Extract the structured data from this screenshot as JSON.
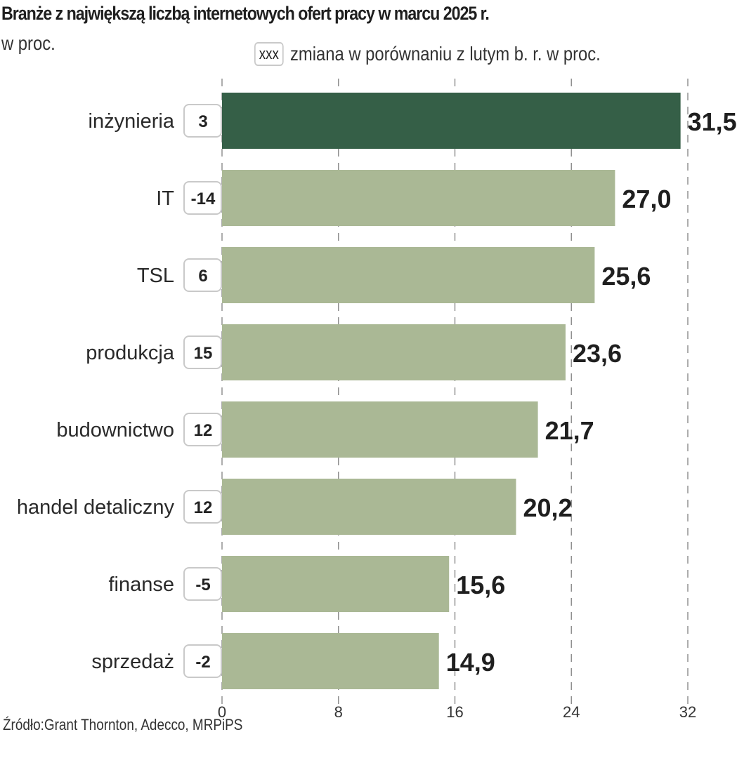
{
  "chart_data": {
    "type": "bar",
    "orientation": "horizontal",
    "title": "Branże z największą liczbą internetowych  ofert pracy w marcu 2025 r.",
    "subtitle": "w proc.",
    "legend": {
      "box_label": "XXX",
      "text": "zmiana w porównaniu z lutym b. r. w proc.",
      "placement": "top-right"
    },
    "categories": [
      "inżynieria",
      "IT",
      "TSL",
      "produkcja",
      "budownictwo",
      "handel detaliczny",
      "finanse",
      "sprzedaż"
    ],
    "values": [
      31.5,
      27.0,
      25.6,
      23.6,
      21.7,
      20.2,
      15.6,
      14.9
    ],
    "value_labels": [
      "31,5",
      "27,0",
      "25,6",
      "23,6",
      "21,7",
      "20,2",
      "15,6",
      "14,9"
    ],
    "change_vs_february": [
      3,
      -14,
      6,
      15,
      12,
      12,
      -5,
      -2
    ],
    "change_labels": [
      "3",
      "-14",
      "6",
      "15",
      "12",
      "12",
      "-5",
      "-2"
    ],
    "highlight_index": 0,
    "xlim": [
      0,
      32
    ],
    "xticks": [
      0,
      8,
      16,
      24,
      32
    ],
    "xtick_labels": [
      "0",
      "8",
      "16",
      "24",
      "32"
    ],
    "grid": "vertical dashed",
    "xlabel": "",
    "ylabel": "",
    "source": "Źródło:Grant Thornton, Adecco, MRPiPS",
    "colors": {
      "highlight": "#355f47",
      "bar": "#aab895",
      "grid": "#8a8a8a",
      "box_border": "#c9c9c9",
      "text": "#222222"
    }
  }
}
